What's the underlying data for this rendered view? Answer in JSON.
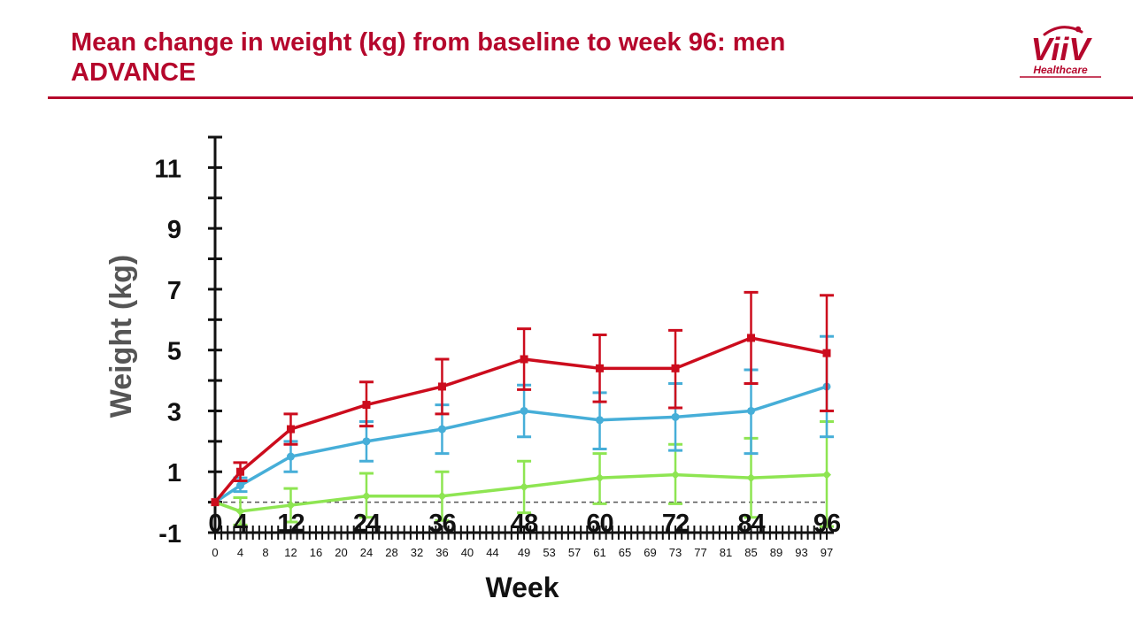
{
  "header": {
    "title_line1": "Mean change in weight (kg) from baseline to week 96: men",
    "title_line2": "ADVANCE"
  },
  "logo": {
    "name": "ViiV",
    "tagline": "Healthcare"
  },
  "colors": {
    "brand": "#b5072c",
    "series_red": "#cc0c1d",
    "series_blue": "#46aed8",
    "series_green": "#8ee552",
    "axis": "#111111",
    "baseline": "#555555"
  },
  "chart_data": {
    "type": "line",
    "title": "",
    "ylabel": "Weight (kg)",
    "xlabel": "Week",
    "ylim": [
      -1,
      12
    ],
    "xlim": [
      0,
      97
    ],
    "yticks": [
      -1,
      1,
      3,
      5,
      7,
      9,
      11
    ],
    "x_ticks": [
      0,
      4,
      8,
      12,
      16,
      20,
      24,
      28,
      32,
      36,
      40,
      44,
      49,
      53,
      57,
      61,
      65,
      69,
      73,
      77,
      81,
      85,
      89,
      93,
      97
    ],
    "x_ticks_top": [
      {
        "label": "0",
        "x": 0
      },
      {
        "label": "4",
        "x": 4
      },
      {
        "label": "12",
        "x": 12
      },
      {
        "label": "24",
        "x": 24
      },
      {
        "label": "36",
        "x": 36
      },
      {
        "label": "48",
        "x": 49
      },
      {
        "label": "60",
        "x": 61
      },
      {
        "label": "72",
        "x": 73
      },
      {
        "label": "84",
        "x": 85
      },
      {
        "label": "96",
        "x": 97
      }
    ],
    "reference_line": 0,
    "series": [
      {
        "name": "red",
        "color": "#cc0c1d",
        "marker": "square",
        "x": [
          0,
          4,
          12,
          24,
          36,
          49,
          61,
          73,
          85,
          97
        ],
        "values": [
          0,
          1.0,
          2.4,
          3.2,
          3.8,
          4.7,
          4.4,
          4.4,
          5.4,
          4.9
        ],
        "err_low": [
          0,
          0.7,
          1.9,
          2.5,
          2.9,
          3.7,
          3.3,
          3.1,
          3.9,
          3.0
        ],
        "err_high": [
          0,
          1.3,
          2.9,
          3.95,
          4.7,
          5.7,
          5.5,
          5.65,
          6.9,
          6.8
        ]
      },
      {
        "name": "blue",
        "color": "#46aed8",
        "marker": "circle",
        "x": [
          0,
          4,
          12,
          24,
          36,
          49,
          61,
          73,
          85,
          97
        ],
        "values": [
          0,
          0.55,
          1.5,
          2.0,
          2.4,
          3.0,
          2.7,
          2.8,
          3.0,
          3.8
        ],
        "err_low": [
          0,
          0.35,
          1.0,
          1.35,
          1.6,
          2.15,
          1.75,
          1.7,
          1.6,
          2.15
        ],
        "err_high": [
          0,
          0.8,
          2.0,
          2.65,
          3.2,
          3.85,
          3.6,
          3.9,
          4.35,
          5.45
        ]
      },
      {
        "name": "green",
        "color": "#8ee552",
        "marker": "diamond",
        "x": [
          0,
          4,
          12,
          24,
          36,
          49,
          61,
          73,
          85,
          97
        ],
        "values": [
          0,
          -0.3,
          -0.1,
          0.2,
          0.2,
          0.5,
          0.8,
          0.9,
          0.8,
          0.9
        ],
        "err_low": [
          0,
          -0.75,
          -0.65,
          -0.5,
          -0.6,
          -0.35,
          -0.05,
          -0.05,
          -0.5,
          -0.8
        ],
        "err_high": [
          0,
          0.15,
          0.45,
          0.95,
          1.0,
          1.35,
          1.6,
          1.9,
          2.1,
          2.65
        ]
      }
    ]
  }
}
